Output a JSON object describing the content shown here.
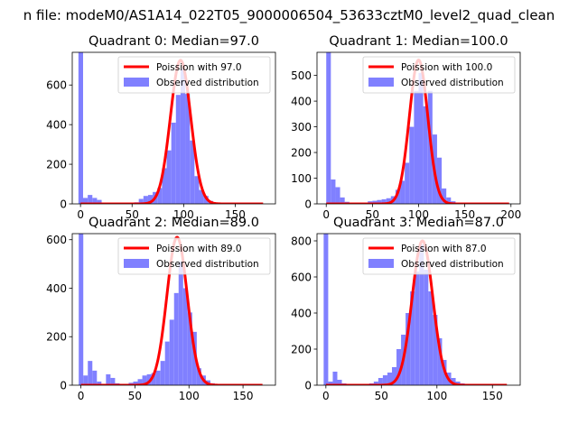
{
  "suptitle": "n file: modeM0/AS1A14_022T05_9000006504_53633cztM0_level2_quad_clean",
  "colors": {
    "hist": "#8080ff",
    "poisson": "#ff0000"
  },
  "chart_data": [
    {
      "type": "bar",
      "title": "Quadrant 0: Median=97.0",
      "legend": [
        "Poission with 97.0",
        "Observed distribution"
      ],
      "legend_loc": "upper right",
      "xlim": [
        -8,
        189
      ],
      "ylim": [
        0,
        765
      ],
      "xticks": [
        0,
        50,
        100,
        150
      ],
      "yticks": [
        0,
        200,
        400,
        600
      ],
      "poisson_mean": 97.0,
      "poisson_peak": 725,
      "bin_width": 4.5,
      "hist": [
        [
          -2,
          765
        ],
        [
          2.5,
          30
        ],
        [
          7,
          45
        ],
        [
          11.5,
          30
        ],
        [
          16,
          20
        ],
        [
          20.5,
          5
        ],
        [
          25,
          5
        ],
        [
          29.5,
          4
        ],
        [
          34,
          4
        ],
        [
          38.5,
          4
        ],
        [
          43,
          4
        ],
        [
          47.5,
          4
        ],
        [
          52,
          8
        ],
        [
          56.5,
          25
        ],
        [
          61,
          40
        ],
        [
          65.5,
          45
        ],
        [
          70,
          60
        ],
        [
          74.5,
          80
        ],
        [
          79,
          180
        ],
        [
          83.5,
          270
        ],
        [
          88,
          410
        ],
        [
          92.5,
          550
        ],
        [
          97,
          680
        ],
        [
          101.5,
          555
        ],
        [
          106,
          320
        ],
        [
          110.5,
          140
        ],
        [
          115,
          70
        ],
        [
          119.5,
          40
        ],
        [
          124,
          15
        ],
        [
          128.5,
          5
        ],
        [
          133,
          3
        ],
        [
          137.5,
          2
        ],
        [
          142,
          2
        ],
        [
          146.5,
          2
        ],
        [
          151,
          2
        ],
        [
          155.5,
          2
        ],
        [
          160,
          2
        ],
        [
          164.5,
          1
        ],
        [
          169,
          1
        ],
        [
          173.5,
          1
        ]
      ]
    },
    {
      "type": "bar",
      "title": "Quadrant 1: Median=100.0",
      "legend": [
        "Poission with 100.0",
        "Observed distribution"
      ],
      "legend_loc": "upper right",
      "xlim": [
        -10,
        210
      ],
      "ylim": [
        0,
        590
      ],
      "xticks": [
        0,
        50,
        100,
        150,
        200
      ],
      "yticks": [
        0,
        100,
        200,
        300,
        400,
        500
      ],
      "poisson_mean": 100.0,
      "poisson_peak": 560,
      "bin_width": 5,
      "hist": [
        [
          0,
          590
        ],
        [
          5,
          95
        ],
        [
          10,
          65
        ],
        [
          15,
          25
        ],
        [
          20,
          8
        ],
        [
          25,
          5
        ],
        [
          30,
          4
        ],
        [
          35,
          4
        ],
        [
          40,
          5
        ],
        [
          45,
          10
        ],
        [
          50,
          12
        ],
        [
          55,
          15
        ],
        [
          60,
          18
        ],
        [
          65,
          22
        ],
        [
          70,
          30
        ],
        [
          75,
          55
        ],
        [
          80,
          90
        ],
        [
          85,
          160
        ],
        [
          90,
          300
        ],
        [
          95,
          440
        ],
        [
          100,
          510
        ],
        [
          105,
          380
        ],
        [
          110,
          440
        ],
        [
          115,
          270
        ],
        [
          120,
          180
        ],
        [
          125,
          60
        ],
        [
          130,
          25
        ],
        [
          135,
          10
        ],
        [
          140,
          5
        ],
        [
          145,
          3
        ],
        [
          150,
          2
        ],
        [
          155,
          2
        ],
        [
          160,
          1
        ],
        [
          165,
          1
        ],
        [
          170,
          1
        ],
        [
          175,
          1
        ],
        [
          180,
          1
        ],
        [
          185,
          1
        ],
        [
          190,
          1
        ],
        [
          195,
          1
        ]
      ]
    },
    {
      "type": "bar",
      "title": "Quadrant 2: Median=89.0",
      "legend": [
        "Poission with 89.0",
        "Observed distribution"
      ],
      "legend_loc": "upper right",
      "xlim": [
        -8,
        180
      ],
      "ylim": [
        0,
        625
      ],
      "xticks": [
        0,
        50,
        100,
        150
      ],
      "yticks": [
        0,
        200,
        400,
        600
      ],
      "poisson_mean": 89.0,
      "poisson_peak": 610,
      "bin_width": 4.2,
      "hist": [
        [
          -2,
          625
        ],
        [
          2.2,
          40
        ],
        [
          6.4,
          100
        ],
        [
          10.6,
          60
        ],
        [
          14.8,
          15
        ],
        [
          19,
          5
        ],
        [
          23.2,
          45
        ],
        [
          27.4,
          30
        ],
        [
          31.6,
          8
        ],
        [
          35.8,
          5
        ],
        [
          40,
          5
        ],
        [
          44.2,
          10
        ],
        [
          48.4,
          15
        ],
        [
          52.6,
          25
        ],
        [
          56.8,
          40
        ],
        [
          61,
          45
        ],
        [
          65.2,
          50
        ],
        [
          69.4,
          60
        ],
        [
          73.6,
          100
        ],
        [
          77.8,
          180
        ],
        [
          82,
          270
        ],
        [
          86.2,
          380
        ],
        [
          90.4,
          510
        ],
        [
          94.6,
          400
        ],
        [
          98.8,
          300
        ],
        [
          103,
          220
        ],
        [
          107.2,
          70
        ],
        [
          111.4,
          40
        ],
        [
          115.6,
          20
        ],
        [
          119.8,
          8
        ],
        [
          124,
          4
        ],
        [
          128.2,
          3
        ],
        [
          132.4,
          2
        ],
        [
          136.6,
          2
        ],
        [
          140.8,
          2
        ],
        [
          145,
          2
        ],
        [
          149.2,
          1
        ],
        [
          153.4,
          1
        ],
        [
          157.6,
          1
        ],
        [
          161.8,
          1
        ]
      ]
    },
    {
      "type": "bar",
      "title": "Quadrant 3: Median=87.0",
      "legend": [
        "Poission with 87.0",
        "Observed distribution"
      ],
      "legend_loc": "upper right",
      "xlim": [
        -8,
        175
      ],
      "ylim": [
        0,
        840
      ],
      "xticks": [
        0,
        50,
        100,
        150
      ],
      "yticks": [
        0,
        200,
        400,
        600,
        800
      ],
      "poisson_mean": 87.0,
      "poisson_peak": 800,
      "bin_width": 4.1,
      "hist": [
        [
          -2,
          840
        ],
        [
          2.1,
          20
        ],
        [
          6.2,
          75
        ],
        [
          10.3,
          30
        ],
        [
          14.4,
          10
        ],
        [
          18.5,
          5
        ],
        [
          22.6,
          5
        ],
        [
          26.7,
          5
        ],
        [
          30.8,
          5
        ],
        [
          34.9,
          5
        ],
        [
          39,
          10
        ],
        [
          43.1,
          20
        ],
        [
          47.2,
          40
        ],
        [
          51.3,
          55
        ],
        [
          55.4,
          70
        ],
        [
          59.5,
          100
        ],
        [
          63.6,
          200
        ],
        [
          67.7,
          280
        ],
        [
          71.8,
          400
        ],
        [
          75.9,
          520
        ],
        [
          80,
          630
        ],
        [
          84.1,
          780
        ],
        [
          88.2,
          640
        ],
        [
          92.3,
          520
        ],
        [
          96.4,
          390
        ],
        [
          100.5,
          260
        ],
        [
          104.6,
          140
        ],
        [
          108.7,
          70
        ],
        [
          112.8,
          40
        ],
        [
          116.9,
          20
        ],
        [
          121,
          10
        ],
        [
          125.1,
          5
        ],
        [
          129.2,
          3
        ],
        [
          133.3,
          2
        ],
        [
          137.4,
          2
        ],
        [
          141.5,
          2
        ],
        [
          145.6,
          1
        ],
        [
          149.7,
          1
        ],
        [
          153.8,
          1
        ],
        [
          157.9,
          1
        ]
      ]
    }
  ]
}
